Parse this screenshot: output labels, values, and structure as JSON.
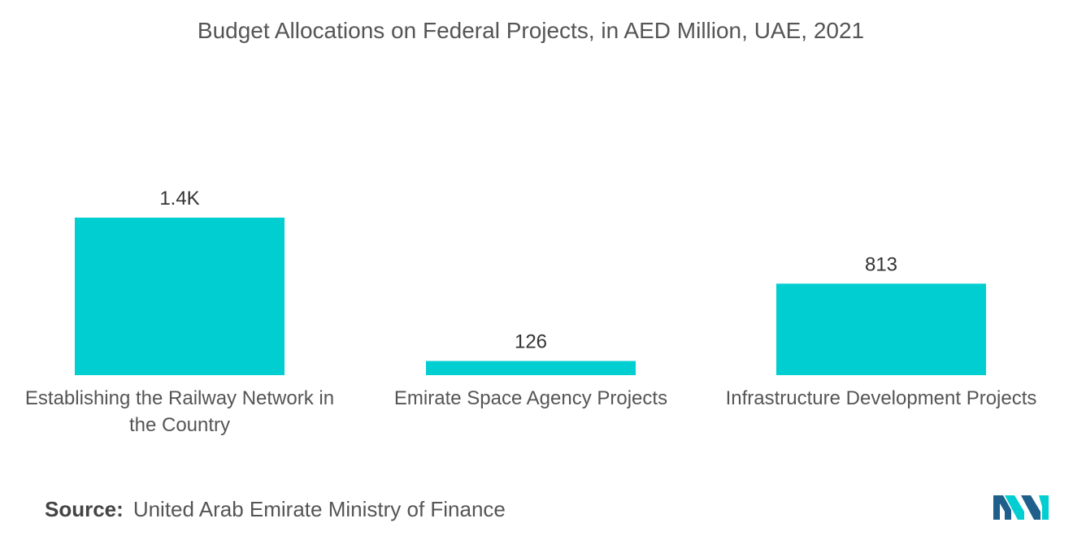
{
  "chart_data": {
    "type": "bar",
    "title": "Budget Allocations on Federal Projects, in AED Million, UAE, 2021",
    "categories": [
      [
        "Establishing the Railway Network in",
        "the Country"
      ],
      [
        "Emirate Space Agency Projects"
      ],
      [
        "Infrastructure Development Projects"
      ]
    ],
    "values": [
      1400,
      126,
      813
    ],
    "data_labels": [
      "1.4K",
      "126",
      "813"
    ],
    "bar_color": "#00CED1",
    "grid": false,
    "y_axis_visible": false,
    "xlabel": "",
    "ylabel": ""
  },
  "source": {
    "label": "Source:",
    "text": "United Arab Emirate Ministry of Finance"
  },
  "logo": {
    "icon": "mordor-intelligence-logo-icon",
    "colors": [
      "#1F5F8B",
      "#00CED1"
    ]
  }
}
